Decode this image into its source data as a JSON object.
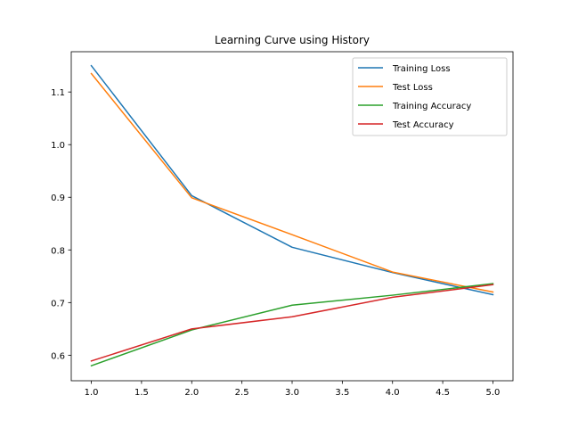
{
  "chart_data": {
    "type": "line",
    "title": "Learning Curve using History",
    "xlabel": "",
    "ylabel": "",
    "x": [
      1.0,
      2.0,
      3.0,
      4.0,
      5.0
    ],
    "xlim": [
      0.8,
      5.2
    ],
    "ylim": [
      0.5515,
      1.1765
    ],
    "xticks": [
      1.0,
      1.5,
      2.0,
      2.5,
      3.0,
      3.5,
      4.0,
      4.5,
      5.0
    ],
    "xtick_labels": [
      "1.0",
      "1.5",
      "2.0",
      "2.5",
      "3.0",
      "3.5",
      "4.0",
      "4.5",
      "5.0"
    ],
    "yticks": [
      0.6,
      0.7,
      0.8,
      0.9,
      1.0,
      1.1
    ],
    "ytick_labels": [
      "0.6",
      "0.7",
      "0.8",
      "0.9",
      "1.0",
      "1.1"
    ],
    "grid": false,
    "legend_position": "upper right",
    "series": [
      {
        "name": "Training Loss",
        "color": "#1f77b4",
        "values": [
          1.15,
          0.903,
          0.805,
          0.757,
          0.715
        ]
      },
      {
        "name": "Test Loss",
        "color": "#ff7f0e",
        "values": [
          1.135,
          0.899,
          0.829,
          0.758,
          0.72
        ]
      },
      {
        "name": "Training Accuracy",
        "color": "#2ca02c",
        "values": [
          0.58,
          0.648,
          0.695,
          0.714,
          0.736
        ]
      },
      {
        "name": "Test Accuracy",
        "color": "#d62728",
        "values": [
          0.589,
          0.65,
          0.673,
          0.71,
          0.734
        ]
      }
    ]
  }
}
